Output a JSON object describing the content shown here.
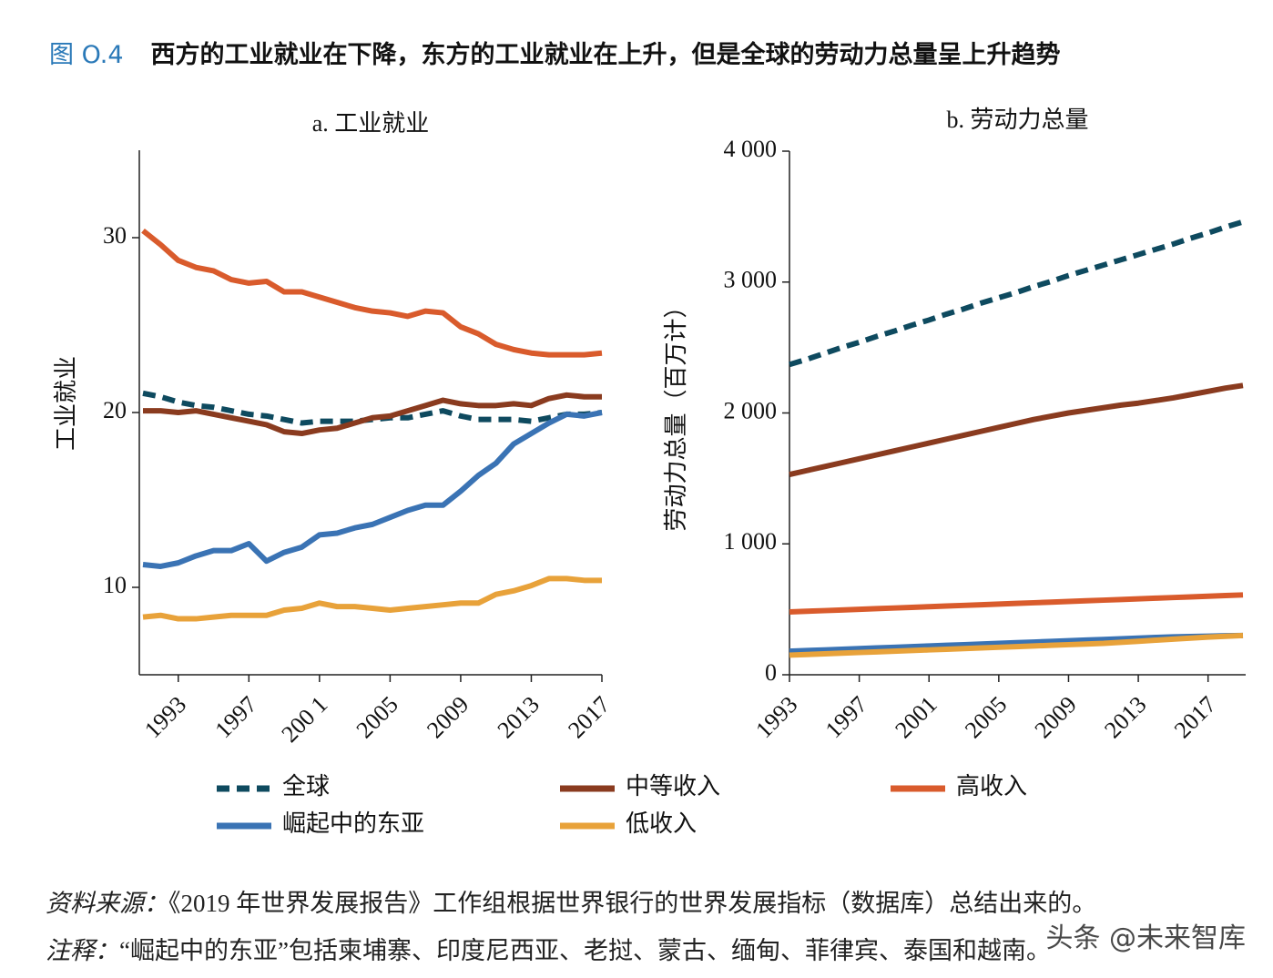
{
  "figure_label": "图 O.4",
  "figure_title": "西方的工业就业在下降，东方的工业就业在上升，但是全球的劳动力总量呈上升趋势",
  "chart_data": [
    {
      "type": "line",
      "title": "a. 工业就业",
      "y_label": "工业就业",
      "x": [
        1991,
        1992,
        1993,
        1994,
        1995,
        1996,
        1997,
        1998,
        1999,
        2000,
        2001,
        2002,
        2003,
        2004,
        2005,
        2006,
        2007,
        2008,
        2009,
        2010,
        2011,
        2012,
        2013,
        2014,
        2015,
        2016,
        2017
      ],
      "xlim": [
        1991,
        2017
      ],
      "xticks": [
        1993,
        1997,
        {
          "value": 2001,
          "label": "200 1"
        },
        2005,
        2009,
        2013,
        2017
      ],
      "ylim": [
        5,
        35
      ],
      "yticks": [
        10,
        20,
        30
      ],
      "legend": "bottom",
      "series": [
        {
          "name": "全球",
          "color": "#0e4a5f",
          "dashed": true,
          "values": [
            21.1,
            20.9,
            20.6,
            20.4,
            20.3,
            20.1,
            19.9,
            19.8,
            19.6,
            19.4,
            19.5,
            19.5,
            19.5,
            19.6,
            19.7,
            19.7,
            19.9,
            20.1,
            19.8,
            19.6,
            19.6,
            19.6,
            19.5,
            19.7,
            19.9,
            19.9,
            20.0
          ]
        },
        {
          "name": "中等收入",
          "color": "#8a3b1f",
          "dashed": false,
          "values": [
            20.1,
            20.1,
            20.0,
            20.1,
            19.9,
            19.7,
            19.5,
            19.3,
            18.9,
            18.8,
            19.0,
            19.1,
            19.4,
            19.7,
            19.8,
            20.1,
            20.4,
            20.7,
            20.5,
            20.4,
            20.4,
            20.5,
            20.4,
            20.8,
            21.0,
            20.9,
            20.9
          ]
        },
        {
          "name": "高收入",
          "color": "#d95b2c",
          "dashed": false,
          "values": [
            30.4,
            29.6,
            28.7,
            28.3,
            28.1,
            27.6,
            27.4,
            27.5,
            26.9,
            26.9,
            26.6,
            26.3,
            26.0,
            25.8,
            25.7,
            25.5,
            25.8,
            25.7,
            24.9,
            24.5,
            23.9,
            23.6,
            23.4,
            23.3,
            23.3,
            23.3,
            23.4
          ]
        },
        {
          "name": "崛起中的东亚",
          "color": "#3a73b4",
          "dashed": false,
          "values": [
            11.3,
            11.2,
            11.4,
            11.8,
            12.1,
            12.1,
            12.5,
            11.5,
            12.0,
            12.3,
            13.0,
            13.1,
            13.4,
            13.6,
            14.0,
            14.4,
            14.7,
            14.7,
            15.5,
            16.4,
            17.1,
            18.2,
            18.8,
            19.4,
            19.9,
            19.8,
            20.0
          ]
        },
        {
          "name": "低收入",
          "color": "#e8a23a",
          "dashed": false,
          "values": [
            8.3,
            8.4,
            8.2,
            8.2,
            8.3,
            8.4,
            8.4,
            8.4,
            8.7,
            8.8,
            9.1,
            8.9,
            8.9,
            8.8,
            8.7,
            8.8,
            8.9,
            9.0,
            9.1,
            9.1,
            9.6,
            9.8,
            10.1,
            10.5,
            10.5,
            10.4,
            10.4
          ]
        }
      ]
    },
    {
      "type": "line",
      "title": "b. 劳动力总量",
      "y_label": "劳动力总量（百万计）",
      "x": [
        1993,
        1994,
        1995,
        1996,
        1997,
        1998,
        1999,
        2000,
        2001,
        2002,
        2003,
        2004,
        2005,
        2006,
        2007,
        2008,
        2009,
        2010,
        2011,
        2012,
        2013,
        2014,
        2015,
        2016,
        2017,
        2018,
        2019
      ],
      "xlim": [
        1993,
        2019
      ],
      "xticks": [
        1993,
        1997,
        2001,
        2005,
        2009,
        2013,
        2017
      ],
      "ylim": [
        0,
        4000
      ],
      "yticks": [
        0,
        {
          "value": 1000,
          "label": "1 000"
        },
        {
          "value": 2000,
          "label": "2 000"
        },
        {
          "value": 3000,
          "label": "3 000"
        },
        {
          "value": 4000,
          "label": "4 000"
        }
      ],
      "series": [
        {
          "color": "#0e4a5f",
          "dashed": true,
          "values": [
            2370,
            2410,
            2455,
            2500,
            2540,
            2585,
            2625,
            2670,
            2710,
            2755,
            2795,
            2840,
            2880,
            2920,
            2965,
            3005,
            3050,
            3090,
            3130,
            3170,
            3210,
            3250,
            3290,
            3335,
            3375,
            3420,
            3460
          ]
        },
        {
          "color": "#8a3b1f",
          "dashed": false,
          "values": [
            1530,
            1560,
            1590,
            1620,
            1650,
            1680,
            1710,
            1740,
            1770,
            1800,
            1830,
            1860,
            1890,
            1920,
            1950,
            1975,
            2000,
            2020,
            2040,
            2060,
            2075,
            2095,
            2115,
            2140,
            2165,
            2190,
            2210
          ]
        },
        {
          "color": "#d95b2c",
          "dashed": false,
          "values": [
            480,
            485,
            490,
            495,
            500,
            505,
            510,
            515,
            520,
            525,
            530,
            535,
            540,
            545,
            550,
            555,
            560,
            565,
            570,
            575,
            580,
            585,
            590,
            595,
            600,
            605,
            610
          ]
        },
        {
          "color": "#3a73b4",
          "dashed": false,
          "values": [
            180,
            185,
            190,
            195,
            200,
            205,
            210,
            215,
            220,
            225,
            230,
            235,
            240,
            245,
            250,
            255,
            260,
            265,
            270,
            275,
            280,
            285,
            290,
            292,
            295,
            298,
            300
          ]
        },
        {
          "color": "#e8a23a",
          "dashed": false,
          "values": [
            150,
            155,
            160,
            165,
            170,
            175,
            180,
            185,
            190,
            195,
            200,
            205,
            210,
            215,
            220,
            225,
            230,
            235,
            240,
            248,
            256,
            264,
            272,
            280,
            288,
            294,
            300
          ]
        }
      ]
    }
  ],
  "source_label": "资料来源：",
  "source_text": "《2019 年世界发展报告》工作组根据世界银行的世界发展指标（数据库）总结出来的。",
  "note_label": "注释：",
  "note_text": "“崛起中的东亚”包括柬埔寨、印度尼西亚、老挝、蒙古、缅甸、菲律宾、泰国和越南。",
  "watermark": "头条 @未来智库"
}
